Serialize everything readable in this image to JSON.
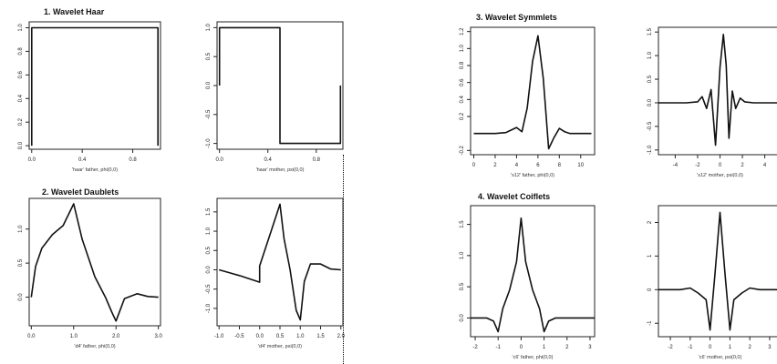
{
  "sections": [
    {
      "title": "1. Wavelet Haar"
    },
    {
      "title": "2. Wavelet Daublets"
    },
    {
      "title": "3. Wavelet Symmlets"
    },
    {
      "title": "4. Wavelet Coiflets"
    }
  ],
  "chart_data": [
    {
      "type": "line",
      "xlabel": "'haar' father, phi(0,0)",
      "xlim": [
        -0.02,
        1.02
      ],
      "ylim": [
        -0.03,
        1.05
      ],
      "xticks": [
        0.0,
        0.4,
        0.8
      ],
      "xtick_labels": [
        "0.0",
        "0.4",
        "0.8"
      ],
      "yticks": [
        0.0,
        0.2,
        0.4,
        0.6,
        0.8,
        1.0
      ],
      "ytick_labels": [
        "0.0",
        "0.2",
        "0.4",
        "0.6",
        "0.8",
        "1.0"
      ],
      "x": [
        0,
        0,
        1,
        1
      ],
      "y": [
        0,
        1,
        1,
        0
      ]
    },
    {
      "type": "line",
      "xlabel": "'haar' mother, psi(0,0)",
      "xlim": [
        -0.02,
        1.02
      ],
      "ylim": [
        -1.1,
        1.1
      ],
      "xticks": [
        0.0,
        0.4,
        0.8
      ],
      "xtick_labels": [
        "0.0",
        "0.4",
        "0.8"
      ],
      "yticks": [
        -1.0,
        -0.5,
        0.0,
        0.5,
        1.0
      ],
      "ytick_labels": [
        "-1.0",
        "-0.5",
        "0.0",
        "0.5",
        "1.0"
      ],
      "x": [
        0,
        0,
        0.5,
        0.5,
        1,
        1
      ],
      "y": [
        0,
        1,
        1,
        -1,
        -1,
        0
      ]
    },
    {
      "type": "line",
      "xlabel": "'d4' father, phi(0,0)",
      "xlim": [
        -0.05,
        3.05
      ],
      "ylim": [
        -0.42,
        1.45
      ],
      "xticks": [
        0.0,
        1.0,
        2.0,
        3.0
      ],
      "xtick_labels": [
        "0.0",
        "1.0",
        "2.0",
        "3.0"
      ],
      "yticks": [
        0.0,
        0.5,
        1.0
      ],
      "ytick_labels": [
        "0.0",
        "0.5",
        "1.0"
      ],
      "x": [
        0,
        0.1,
        0.25,
        0.5,
        0.75,
        1.0,
        1.2,
        1.5,
        1.75,
        1.9,
        2.0,
        2.2,
        2.5,
        2.75,
        3.0
      ],
      "y": [
        0,
        0.45,
        0.72,
        0.92,
        1.05,
        1.37,
        0.85,
        0.3,
        0.0,
        -0.22,
        -0.35,
        -0.02,
        0.05,
        0.01,
        0
      ]
    },
    {
      "type": "line",
      "xlabel": "'d4' mother, psi(0,0)",
      "xlim": [
        -1.05,
        2.05
      ],
      "ylim": [
        -1.45,
        1.85
      ],
      "xticks": [
        -1.0,
        -0.5,
        0.0,
        0.5,
        1.0,
        1.5,
        2.0
      ],
      "xtick_labels": [
        "-1.0",
        "-0.5",
        "0.0",
        "0.5",
        "1.0",
        "1.5",
        "2.0"
      ],
      "yticks": [
        -1.0,
        -0.5,
        0.0,
        0.5,
        1.0,
        1.5
      ],
      "ytick_labels": [
        "-1.0",
        "-0.5",
        "0.0",
        "0.5",
        "1.0",
        "1.5"
      ],
      "x": [
        -1.0,
        -0.5,
        0.0,
        0.0,
        0.25,
        0.5,
        0.6,
        0.75,
        0.9,
        1.0,
        1.1,
        1.25,
        1.5,
        1.75,
        2.0
      ],
      "y": [
        0.0,
        -0.15,
        -0.32,
        0.1,
        0.9,
        1.7,
        0.8,
        0.0,
        -1.05,
        -1.3,
        -0.3,
        0.15,
        0.15,
        0.02,
        0.0
      ]
    },
    {
      "type": "line",
      "xlabel": "'s12' father, phi(0,0)",
      "xlim": [
        -0.3,
        11.3
      ],
      "ylim": [
        -0.25,
        1.25
      ],
      "xticks": [
        0,
        2,
        4,
        6,
        8,
        10
      ],
      "xtick_labels": [
        "0",
        "2",
        "4",
        "6",
        "8",
        "10"
      ],
      "yticks": [
        -0.2,
        0.2,
        0.4,
        0.6,
        0.8,
        1.0,
        1.2
      ],
      "ytick_labels": [
        "-0.2",
        "0.2",
        "0.4",
        "0.6",
        "0.8",
        "1.0",
        "1.2"
      ],
      "x": [
        0,
        2,
        3,
        3.5,
        4,
        4.5,
        5,
        5.5,
        6,
        6.5,
        7,
        7.5,
        8,
        8.5,
        9,
        10,
        11
      ],
      "y": [
        0,
        0,
        0.01,
        0.04,
        0.07,
        0.02,
        0.3,
        0.85,
        1.15,
        0.65,
        -0.18,
        -0.05,
        0.06,
        0.02,
        0.0,
        0.0,
        0
      ]
    },
    {
      "type": "line",
      "xlabel": "'s12' mother, psi(0,0)",
      "xlim": [
        -5.5,
        5.5
      ],
      "ylim": [
        -1.1,
        1.6
      ],
      "xticks": [
        -4,
        -2,
        0,
        2,
        4
      ],
      "xtick_labels": [
        "-4",
        "-2",
        "0",
        "2",
        "4"
      ],
      "yticks": [
        -1.0,
        -0.5,
        0.0,
        0.5,
        1.0,
        1.5
      ],
      "ytick_labels": [
        "-1.0",
        "-0.5",
        "0.0",
        "0.5",
        "1.0",
        "1.5"
      ],
      "x": [
        -5.5,
        -3,
        -2,
        -1.6,
        -1.2,
        -0.8,
        -0.4,
        0,
        0.3,
        0.55,
        0.8,
        1.1,
        1.4,
        1.8,
        2.2,
        3,
        5.5
      ],
      "y": [
        0,
        0,
        0.02,
        0.13,
        -0.12,
        0.28,
        -0.9,
        0.75,
        1.45,
        0.8,
        -0.75,
        0.25,
        -0.12,
        0.1,
        0.02,
        0,
        0
      ]
    },
    {
      "type": "line",
      "xlabel": "'c6' father, phi(0,0)",
      "xlim": [
        -2.2,
        3.2
      ],
      "ylim": [
        -0.3,
        1.8
      ],
      "xticks": [
        -2,
        -1,
        0,
        1,
        2,
        3
      ],
      "xtick_labels": [
        "-2",
        "-1",
        "0",
        "1",
        "2",
        "3"
      ],
      "yticks": [
        0.0,
        0.5,
        1.0,
        1.5
      ],
      "ytick_labels": [
        "0.0",
        "0.5",
        "1.0",
        "1.5"
      ],
      "x": [
        -2.2,
        -1.5,
        -1.2,
        -1.0,
        -0.8,
        -0.5,
        -0.2,
        0.0,
        0.2,
        0.5,
        0.8,
        1.0,
        1.2,
        1.5,
        2.2,
        3.2
      ],
      "y": [
        0,
        0.0,
        -0.05,
        -0.22,
        0.15,
        0.45,
        0.9,
        1.6,
        0.9,
        0.45,
        0.15,
        -0.22,
        -0.05,
        0.0,
        0,
        0
      ]
    },
    {
      "type": "line",
      "xlabel": "'c6' mother, psi(0,0)",
      "xlim": [
        -2.6,
        3.6
      ],
      "ylim": [
        -1.4,
        2.5
      ],
      "xticks": [
        -2,
        -1,
        0,
        1,
        2,
        3
      ],
      "xtick_labels": [
        "-2",
        "-1",
        "0",
        "1",
        "2",
        "3"
      ],
      "yticks": [
        -1,
        0,
        1,
        2
      ],
      "ytick_labels": [
        "-1",
        "0",
        "1",
        "2"
      ],
      "x": [
        -2.6,
        -1.5,
        -1.0,
        -0.6,
        -0.2,
        0.0,
        0.25,
        0.5,
        0.75,
        1.0,
        1.2,
        1.6,
        2.0,
        2.5,
        3.6
      ],
      "y": [
        0,
        0.0,
        0.05,
        -0.1,
        -0.3,
        -1.2,
        0.5,
        2.3,
        0.5,
        -1.2,
        -0.3,
        -0.1,
        0.05,
        0.0,
        0
      ]
    }
  ]
}
